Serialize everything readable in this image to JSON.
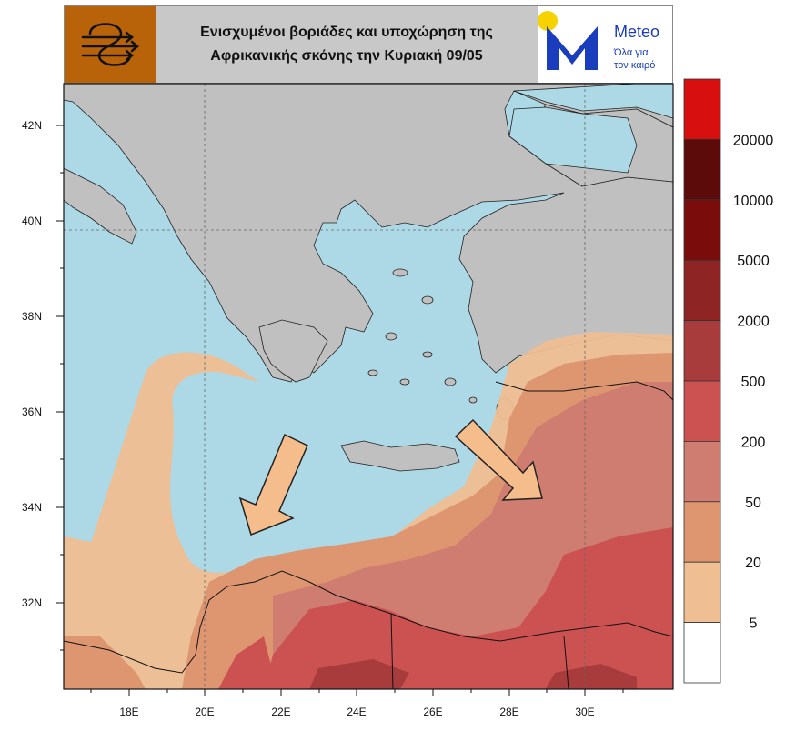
{
  "header": {
    "title_line1": "Ενισχυμένοι βοριάδες και υποχώρηση της",
    "title_line2": "Αφρικανικής σκόνης την Κυριακή 09/05",
    "brand_name": "Meteo",
    "brand_tagline_1": "Όλα για",
    "brand_tagline_2": "τον καιρό"
  },
  "axes": {
    "lat_labels": [
      "42N",
      "40N",
      "38N",
      "36N",
      "34N",
      "32N"
    ],
    "lon_labels": [
      "18E",
      "20E",
      "22E",
      "24E",
      "26E",
      "28E",
      "30E"
    ]
  },
  "colorbar": {
    "labels": [
      "20000",
      "10000",
      "5000",
      "2000",
      "500",
      "200",
      "50",
      "20",
      "5"
    ],
    "colors": [
      "#d70f0f",
      "#5c0a0a",
      "#7a0c0c",
      "#8e2424",
      "#a83c3c",
      "#cc5252",
      "#cf7d70",
      "#de9670",
      "#efbe92",
      "#ffffff"
    ]
  },
  "map_colors": {
    "sea": "#add8e6",
    "land": "#c0c0c0",
    "arrow": "#f5bc8c"
  }
}
